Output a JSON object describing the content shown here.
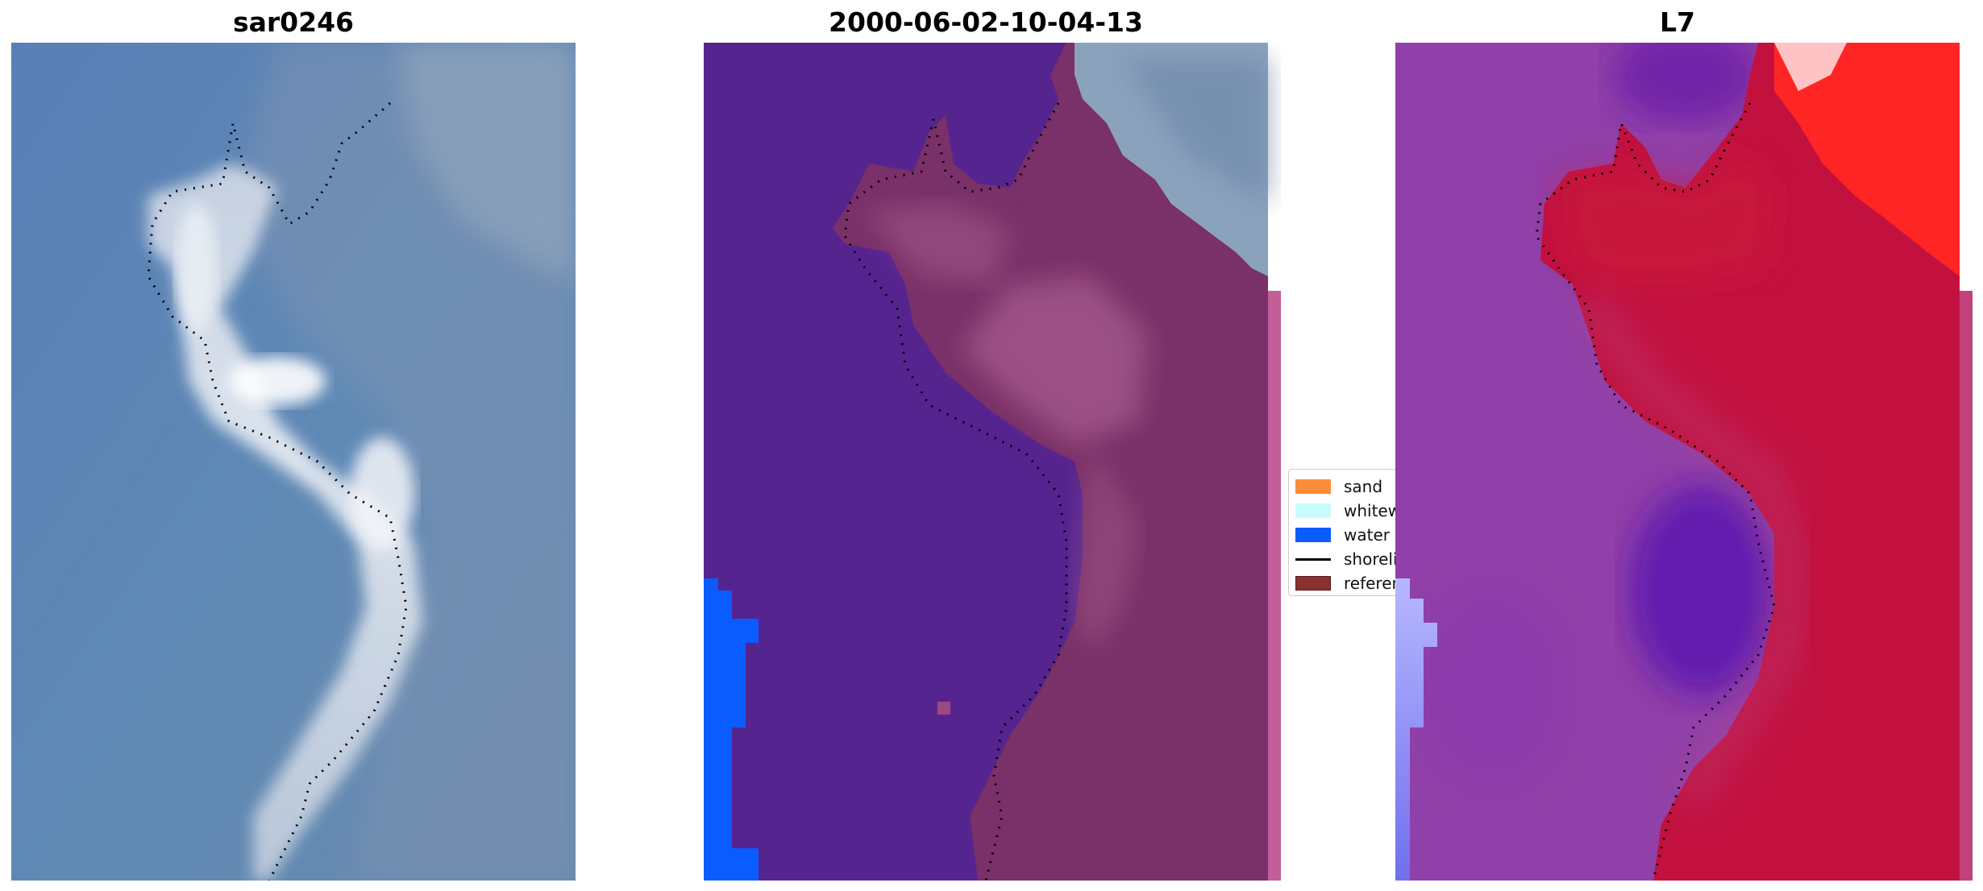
{
  "panels": [
    {
      "title": "sar0246"
    },
    {
      "title": "2000-06-02-10-04-13"
    },
    {
      "title": "L7"
    }
  ],
  "legend": {
    "items": [
      {
        "label": "sand",
        "color": "#ff8c3a",
        "kind": "patch"
      },
      {
        "label": "whitewater",
        "color": "#c8fcfc",
        "kind": "patch"
      },
      {
        "label": "water",
        "color": "#0a5cff",
        "kind": "patch"
      },
      {
        "label": "shoreline",
        "color": "#000000",
        "kind": "line"
      },
      {
        "label": "reference",
        "color": "#8c2f30",
        "kind": "patch"
      }
    ]
  },
  "colors": {
    "rgb_water": "#5a82b4",
    "rgb_surf": "#e8ecf2",
    "class_water_overlay": "#56248f",
    "class_water_blue": "#0a5cff",
    "class_land": "#7a3068",
    "ndwi_negative": "#c01540",
    "ndwi_positive": "#8a3aa8"
  }
}
